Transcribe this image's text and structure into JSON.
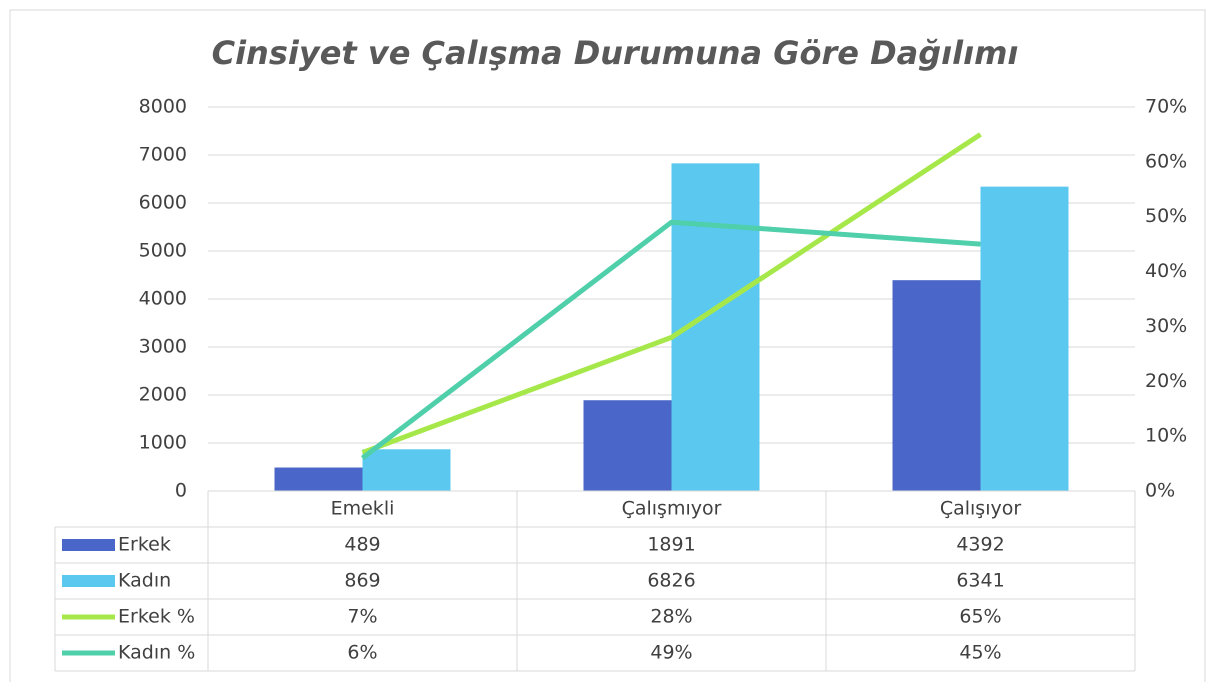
{
  "chart_data": {
    "type": "bar",
    "title": "Cinsiyet ve Çalışma Durumuna Göre Dağılımı",
    "categories": [
      "Emekli",
      "Çalışmıyor",
      "Çalışıyor"
    ],
    "series": [
      {
        "name": "Erkek",
        "type": "bar",
        "color": "#4a66c8",
        "values": [
          489,
          1891,
          4392
        ]
      },
      {
        "name": "Kadın",
        "type": "bar",
        "color": "#5bc8f0",
        "values": [
          869,
          6826,
          6341
        ]
      },
      {
        "name": "Erkek %",
        "type": "line",
        "axis": "y2",
        "color": "#a6e84a",
        "values": [
          7,
          28,
          65
        ],
        "value_labels": [
          "7%",
          "28%",
          "65%"
        ]
      },
      {
        "name": "Kadın %",
        "type": "line",
        "axis": "y2",
        "color": "#4fcfaa",
        "values": [
          6,
          49,
          45
        ],
        "value_labels": [
          "6%",
          "49%",
          "45%"
        ]
      }
    ],
    "ylim": [
      0,
      8000
    ],
    "yticks": [
      0,
      1000,
      2000,
      3000,
      4000,
      5000,
      6000,
      7000,
      8000
    ],
    "y2lim": [
      0,
      70
    ],
    "y2ticks": [
      {
        "value": 0,
        "label": "0%"
      },
      {
        "value": 10,
        "label": "10%"
      },
      {
        "value": 20,
        "label": "20%"
      },
      {
        "value": 30,
        "label": "30%"
      },
      {
        "value": 40,
        "label": "40%"
      },
      {
        "value": 50,
        "label": "50%"
      },
      {
        "value": 60,
        "label": "60%"
      },
      {
        "value": 70,
        "label": "70%"
      }
    ],
    "grid": true,
    "data_table": true
  }
}
